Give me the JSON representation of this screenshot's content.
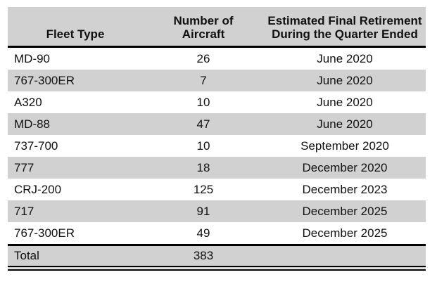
{
  "colors": {
    "band_gray": "#d1d1d1",
    "rule_black": "#000000",
    "text": "#111111"
  },
  "table": {
    "headers": [
      {
        "label": "Fleet Type"
      },
      {
        "label": "Number of\nAircraft"
      },
      {
        "label": "Estimated Final Retirement\nDuring the Quarter Ended"
      }
    ],
    "rows": [
      {
        "fleet_type": "MD-90",
        "number_of_aircraft": "26",
        "retirement_quarter": "June 2020"
      },
      {
        "fleet_type": "767-300ER",
        "number_of_aircraft": "7",
        "retirement_quarter": "June 2020"
      },
      {
        "fleet_type": "A320",
        "number_of_aircraft": "10",
        "retirement_quarter": "June 2020"
      },
      {
        "fleet_type": "MD-88",
        "number_of_aircraft": "47",
        "retirement_quarter": "June 2020"
      },
      {
        "fleet_type": "737-700",
        "number_of_aircraft": "10",
        "retirement_quarter": "September 2020"
      },
      {
        "fleet_type": "777",
        "number_of_aircraft": "18",
        "retirement_quarter": "December 2020"
      },
      {
        "fleet_type": "CRJ-200",
        "number_of_aircraft": "125",
        "retirement_quarter": "December 2023"
      },
      {
        "fleet_type": "717",
        "number_of_aircraft": "91",
        "retirement_quarter": "December 2025"
      },
      {
        "fleet_type": "767-300ER",
        "number_of_aircraft": "49",
        "retirement_quarter": "December 2025"
      }
    ],
    "total_row": {
      "label": "Total",
      "number_of_aircraft": "383",
      "retirement_quarter": ""
    }
  }
}
